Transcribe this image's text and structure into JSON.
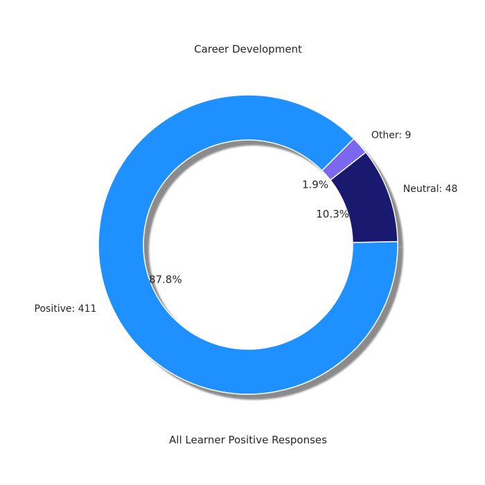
{
  "chart_data": {
    "type": "pie",
    "variant": "donut",
    "title": "Career Development",
    "xlabel": "All Learner Positive Responses",
    "slices": [
      {
        "category": "Positive",
        "label": "Positive: 411",
        "value": 411,
        "percent": "87.8%",
        "color": "#1E90FF"
      },
      {
        "category": "Neutral",
        "label": "Neutral: 48",
        "value": 48,
        "percent": "10.3%",
        "color": "#191970"
      },
      {
        "category": "Other",
        "label": "Other: 9",
        "value": 9,
        "percent": "1.9%",
        "color": "#7B68EE"
      }
    ],
    "shadow": true,
    "legend": "none"
  }
}
